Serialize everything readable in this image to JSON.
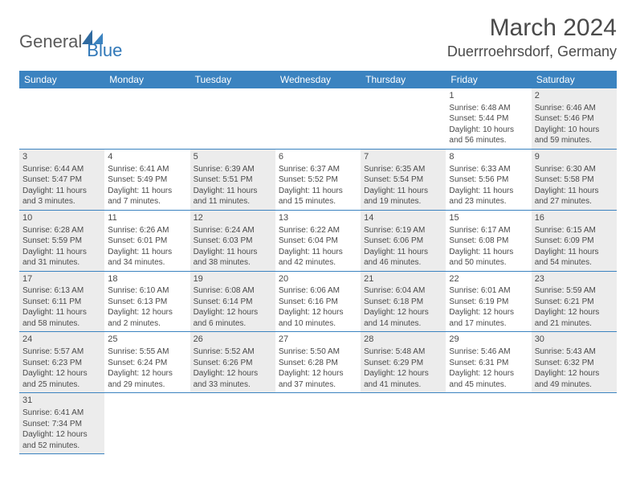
{
  "logo": {
    "general": "General",
    "blue": "Blue"
  },
  "title": "March 2024",
  "location": "Duerrroehrsdorf, Germany",
  "colors": {
    "header_bg": "#3b83c0",
    "header_text": "#ffffff",
    "cell_shade": "#ececec",
    "cell_border": "#3b83c0",
    "text": "#4a4a4a",
    "logo_blue": "#3178b8"
  },
  "dayHeaders": [
    "Sunday",
    "Monday",
    "Tuesday",
    "Wednesday",
    "Thursday",
    "Friday",
    "Saturday"
  ],
  "weeks": [
    [
      null,
      null,
      null,
      null,
      null,
      {
        "n": "1",
        "sr": "Sunrise: 6:48 AM",
        "ss": "Sunset: 5:44 PM",
        "dl": "Daylight: 10 hours and 56 minutes."
      },
      {
        "n": "2",
        "sr": "Sunrise: 6:46 AM",
        "ss": "Sunset: 5:46 PM",
        "dl": "Daylight: 10 hours and 59 minutes."
      }
    ],
    [
      {
        "n": "3",
        "sr": "Sunrise: 6:44 AM",
        "ss": "Sunset: 5:47 PM",
        "dl": "Daylight: 11 hours and 3 minutes."
      },
      {
        "n": "4",
        "sr": "Sunrise: 6:41 AM",
        "ss": "Sunset: 5:49 PM",
        "dl": "Daylight: 11 hours and 7 minutes."
      },
      {
        "n": "5",
        "sr": "Sunrise: 6:39 AM",
        "ss": "Sunset: 5:51 PM",
        "dl": "Daylight: 11 hours and 11 minutes."
      },
      {
        "n": "6",
        "sr": "Sunrise: 6:37 AM",
        "ss": "Sunset: 5:52 PM",
        "dl": "Daylight: 11 hours and 15 minutes."
      },
      {
        "n": "7",
        "sr": "Sunrise: 6:35 AM",
        "ss": "Sunset: 5:54 PM",
        "dl": "Daylight: 11 hours and 19 minutes."
      },
      {
        "n": "8",
        "sr": "Sunrise: 6:33 AM",
        "ss": "Sunset: 5:56 PM",
        "dl": "Daylight: 11 hours and 23 minutes."
      },
      {
        "n": "9",
        "sr": "Sunrise: 6:30 AM",
        "ss": "Sunset: 5:58 PM",
        "dl": "Daylight: 11 hours and 27 minutes."
      }
    ],
    [
      {
        "n": "10",
        "sr": "Sunrise: 6:28 AM",
        "ss": "Sunset: 5:59 PM",
        "dl": "Daylight: 11 hours and 31 minutes."
      },
      {
        "n": "11",
        "sr": "Sunrise: 6:26 AM",
        "ss": "Sunset: 6:01 PM",
        "dl": "Daylight: 11 hours and 34 minutes."
      },
      {
        "n": "12",
        "sr": "Sunrise: 6:24 AM",
        "ss": "Sunset: 6:03 PM",
        "dl": "Daylight: 11 hours and 38 minutes."
      },
      {
        "n": "13",
        "sr": "Sunrise: 6:22 AM",
        "ss": "Sunset: 6:04 PM",
        "dl": "Daylight: 11 hours and 42 minutes."
      },
      {
        "n": "14",
        "sr": "Sunrise: 6:19 AM",
        "ss": "Sunset: 6:06 PM",
        "dl": "Daylight: 11 hours and 46 minutes."
      },
      {
        "n": "15",
        "sr": "Sunrise: 6:17 AM",
        "ss": "Sunset: 6:08 PM",
        "dl": "Daylight: 11 hours and 50 minutes."
      },
      {
        "n": "16",
        "sr": "Sunrise: 6:15 AM",
        "ss": "Sunset: 6:09 PM",
        "dl": "Daylight: 11 hours and 54 minutes."
      }
    ],
    [
      {
        "n": "17",
        "sr": "Sunrise: 6:13 AM",
        "ss": "Sunset: 6:11 PM",
        "dl": "Daylight: 11 hours and 58 minutes."
      },
      {
        "n": "18",
        "sr": "Sunrise: 6:10 AM",
        "ss": "Sunset: 6:13 PM",
        "dl": "Daylight: 12 hours and 2 minutes."
      },
      {
        "n": "19",
        "sr": "Sunrise: 6:08 AM",
        "ss": "Sunset: 6:14 PM",
        "dl": "Daylight: 12 hours and 6 minutes."
      },
      {
        "n": "20",
        "sr": "Sunrise: 6:06 AM",
        "ss": "Sunset: 6:16 PM",
        "dl": "Daylight: 12 hours and 10 minutes."
      },
      {
        "n": "21",
        "sr": "Sunrise: 6:04 AM",
        "ss": "Sunset: 6:18 PM",
        "dl": "Daylight: 12 hours and 14 minutes."
      },
      {
        "n": "22",
        "sr": "Sunrise: 6:01 AM",
        "ss": "Sunset: 6:19 PM",
        "dl": "Daylight: 12 hours and 17 minutes."
      },
      {
        "n": "23",
        "sr": "Sunrise: 5:59 AM",
        "ss": "Sunset: 6:21 PM",
        "dl": "Daylight: 12 hours and 21 minutes."
      }
    ],
    [
      {
        "n": "24",
        "sr": "Sunrise: 5:57 AM",
        "ss": "Sunset: 6:23 PM",
        "dl": "Daylight: 12 hours and 25 minutes."
      },
      {
        "n": "25",
        "sr": "Sunrise: 5:55 AM",
        "ss": "Sunset: 6:24 PM",
        "dl": "Daylight: 12 hours and 29 minutes."
      },
      {
        "n": "26",
        "sr": "Sunrise: 5:52 AM",
        "ss": "Sunset: 6:26 PM",
        "dl": "Daylight: 12 hours and 33 minutes."
      },
      {
        "n": "27",
        "sr": "Sunrise: 5:50 AM",
        "ss": "Sunset: 6:28 PM",
        "dl": "Daylight: 12 hours and 37 minutes."
      },
      {
        "n": "28",
        "sr": "Sunrise: 5:48 AM",
        "ss": "Sunset: 6:29 PM",
        "dl": "Daylight: 12 hours and 41 minutes."
      },
      {
        "n": "29",
        "sr": "Sunrise: 5:46 AM",
        "ss": "Sunset: 6:31 PM",
        "dl": "Daylight: 12 hours and 45 minutes."
      },
      {
        "n": "30",
        "sr": "Sunrise: 5:43 AM",
        "ss": "Sunset: 6:32 PM",
        "dl": "Daylight: 12 hours and 49 minutes."
      }
    ],
    [
      {
        "n": "31",
        "sr": "Sunrise: 6:41 AM",
        "ss": "Sunset: 7:34 PM",
        "dl": "Daylight: 12 hours and 52 minutes."
      },
      null,
      null,
      null,
      null,
      null,
      null
    ]
  ]
}
